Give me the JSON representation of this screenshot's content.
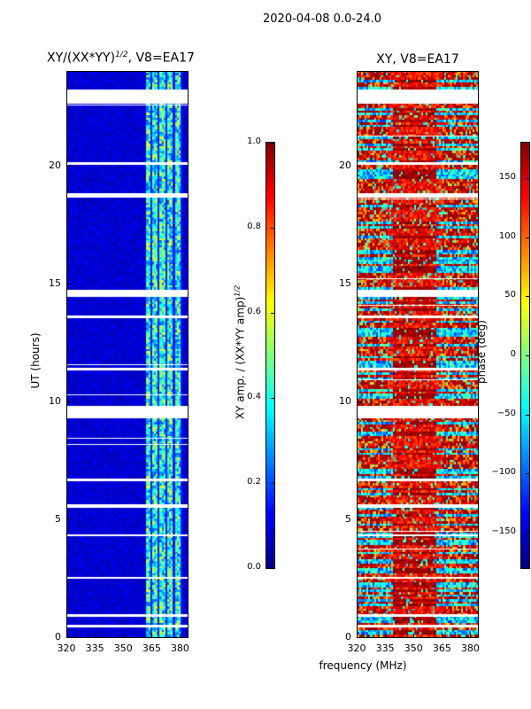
{
  "suptitle": "2020-04-08 0.0-24.0",
  "xlabel": "frequency (MHz)",
  "chart_data": [
    {
      "type": "heatmap",
      "title_main": "XY/(XX*YY)",
      "title_sup": "1/2",
      "title_rest": ", V8=EA17",
      "ylabel": "UT (hours)",
      "xlim": [
        320,
        384
      ],
      "ylim": [
        0,
        24
      ],
      "xticks": [
        "320",
        "335",
        "350",
        "365",
        "380"
      ],
      "xtick_values": [
        320,
        335,
        350,
        365,
        380
      ],
      "yticks": [
        "0",
        "5",
        "10",
        "15",
        "20"
      ],
      "ytick_values": [
        0,
        5,
        10,
        15,
        20
      ],
      "colorbar": {
        "label_main": "XY amp. / (XX*YY amp)",
        "label_sup": "1/2",
        "range": [
          0,
          1
        ],
        "ticks": [
          "0.0",
          "0.2",
          "0.4",
          "0.6",
          "0.8",
          "1.0"
        ],
        "tick_values": [
          0,
          0.2,
          0.4,
          0.6,
          0.8,
          1.0
        ]
      },
      "description_values": {
        "background": 0.05,
        "bright_band_MHz": [
          362,
          380
        ],
        "bright_level": 0.45
      }
    },
    {
      "type": "heatmap",
      "title": "XY, V8=EA17",
      "xlim": [
        320,
        384
      ],
      "ylim": [
        0,
        24
      ],
      "xticks": [
        "320",
        "335",
        "350",
        "365",
        "380"
      ],
      "xtick_values": [
        320,
        335,
        350,
        365,
        380
      ],
      "yticks": [
        "0",
        "5",
        "10",
        "15",
        "20"
      ],
      "ytick_values": [
        0,
        5,
        10,
        15,
        20
      ],
      "colorbar": {
        "label": "phase (deg)",
        "range": [
          -180,
          180
        ],
        "ticks": [
          "150",
          "100",
          "50",
          "0",
          "−50",
          "−100",
          "−150"
        ],
        "tick_values": [
          150,
          100,
          50,
          0,
          -50,
          -100,
          -150
        ]
      },
      "description_values": {
        "typical_phase_deg": 150
      }
    }
  ],
  "flagged_ut_hours": [
    [
      0.4,
      0.5
    ],
    [
      0.85,
      0.95
    ],
    [
      2.45,
      2.55
    ],
    [
      4.25,
      4.35
    ],
    [
      5.45,
      5.6
    ],
    [
      6.6,
      6.7
    ],
    [
      9.25,
      9.8
    ],
    [
      11.3,
      11.4
    ],
    [
      13.5,
      13.6
    ],
    [
      14.4,
      14.7
    ],
    [
      18.6,
      18.8
    ],
    [
      20.0,
      20.1
    ],
    [
      22.6,
      23.2
    ]
  ]
}
